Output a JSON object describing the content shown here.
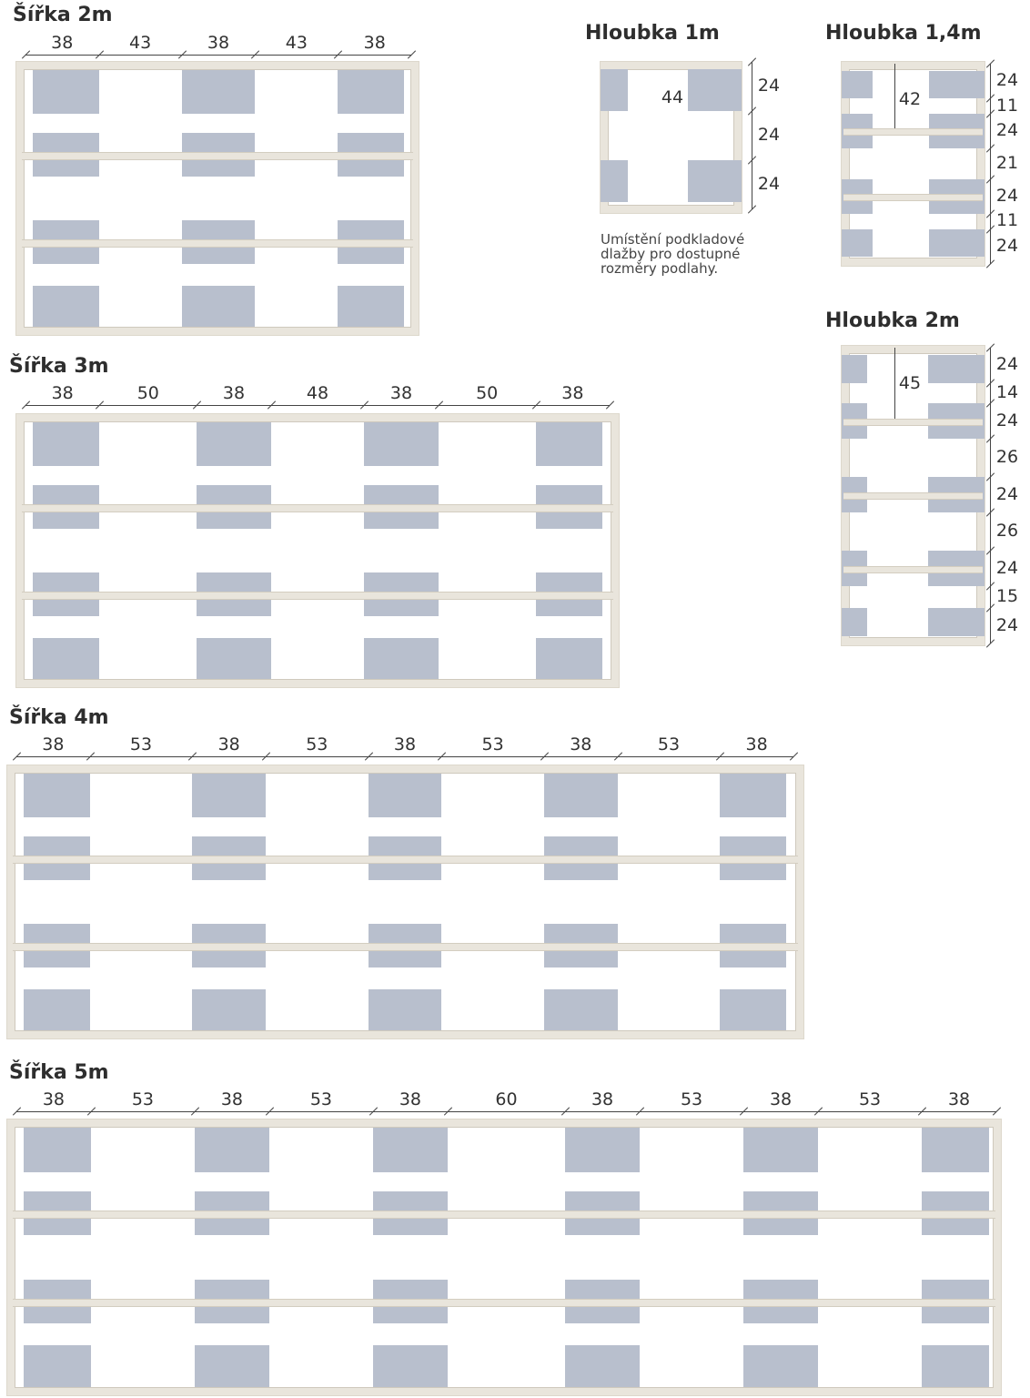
{
  "plans_width": [
    {
      "title": "Šířka 2m",
      "dims": [
        "38",
        "43",
        "38",
        "43",
        "38"
      ]
    },
    {
      "title": "Šířka 3m",
      "dims": [
        "38",
        "50",
        "38",
        "48",
        "38",
        "50",
        "38"
      ]
    },
    {
      "title": "Šířka 4m",
      "dims": [
        "38",
        "53",
        "38",
        "53",
        "38",
        "53",
        "38",
        "53",
        "38"
      ]
    },
    {
      "title": "Šířka 5m",
      "dims": [
        "38",
        "53",
        "38",
        "53",
        "38",
        "60",
        "38",
        "53",
        "38",
        "53",
        "38"
      ]
    }
  ],
  "plans_depth": [
    {
      "title": "Hloubka 1m",
      "dims": [
        "24",
        "24",
        "24"
      ],
      "inner": "44"
    },
    {
      "title": "Hloubka 1,4m",
      "dims": [
        "24",
        "11",
        "24",
        "21",
        "24",
        "11",
        "24"
      ],
      "inner": "42"
    },
    {
      "title": "Hloubka 2m",
      "dims": [
        "24",
        "14",
        "24",
        "26",
        "24",
        "26",
        "24",
        "15",
        "24"
      ],
      "inner": "45"
    }
  ],
  "caption": "Umístění podkladové dlažby pro dostupné rozměry podlahy.",
  "colors": {
    "tile": "#b8bfcd",
    "wood": "#e9e5dc"
  }
}
